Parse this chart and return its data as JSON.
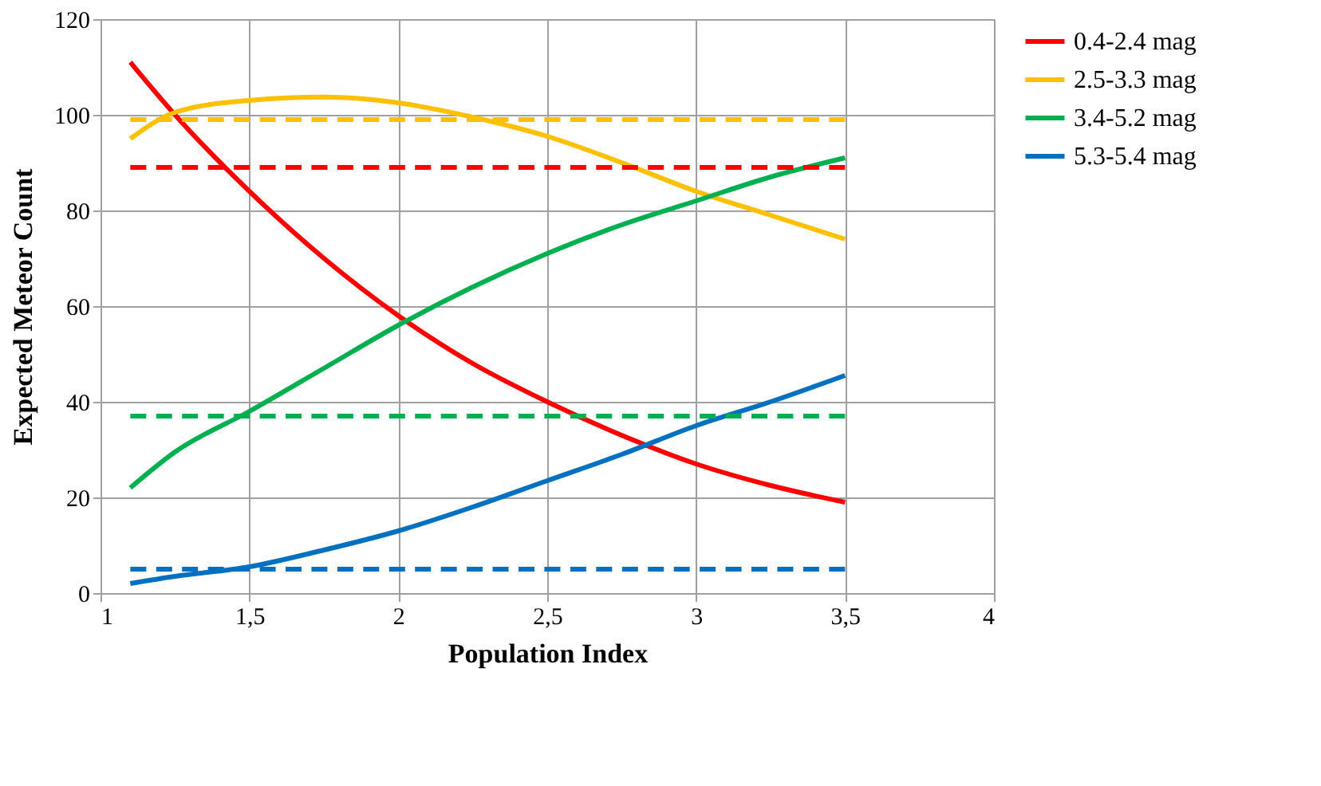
{
  "chart_data": {
    "type": "line",
    "xlabel": "Population Index",
    "ylabel": "Expected Meteor Count",
    "xlim": [
      1,
      4
    ],
    "xticks": [
      1,
      {
        "value": 1.5,
        "label": "1,5"
      },
      2,
      {
        "value": 2.5,
        "label": "2,5"
      },
      3,
      {
        "value": 3.5,
        "label": "3,5"
      },
      4
    ],
    "ylim": [
      0,
      120
    ],
    "yticks": [
      0,
      20,
      40,
      60,
      80,
      100,
      120
    ],
    "grid": true,
    "legend": "right",
    "marker": "none",
    "series": [
      {
        "name": "0.4-2.4 mag",
        "color": "#ff0000",
        "line_style": "solid",
        "x": [
          1.1,
          1.25,
          1.5,
          1.75,
          2,
          2.25,
          2.5,
          2.75,
          3,
          3.25,
          3.5
        ],
        "values": [
          111,
          100,
          84,
          70,
          58,
          48,
          40,
          33,
          27,
          22.5,
          19
        ]
      },
      {
        "name": "2.5-3.3 mag",
        "color": "#ffc000",
        "line_style": "solid",
        "x": [
          1.1,
          1.25,
          1.5,
          1.75,
          2,
          2.25,
          2.5,
          2.75,
          3,
          3.25,
          3.5
        ],
        "values": [
          95,
          100.5,
          103,
          103.7,
          102.5,
          99.5,
          95.5,
          90,
          84,
          79,
          74
        ]
      },
      {
        "name": "3.4-5.2 mag",
        "color": "#00b050",
        "line_style": "solid",
        "x": [
          1.1,
          1.25,
          1.5,
          1.75,
          2,
          2.25,
          2.5,
          2.75,
          3,
          3.25,
          3.5
        ],
        "values": [
          22,
          29.5,
          38,
          47,
          56,
          64,
          71,
          77,
          82,
          87,
          91
        ]
      },
      {
        "name": "5.3-5.4 mag",
        "color": "#0070c0",
        "line_style": "solid",
        "x": [
          1.1,
          1.25,
          1.5,
          1.75,
          2,
          2.25,
          2.5,
          2.75,
          3,
          3.25,
          3.5
        ],
        "values": [
          2,
          3.5,
          5.5,
          9,
          13,
          18,
          23.5,
          29,
          35,
          40,
          45.5
        ]
      },
      {
        "color": "#ff0000",
        "line_style": "dashed",
        "x": [
          1.1,
          3.5
        ],
        "values": [
          89,
          89
        ]
      },
      {
        "color": "#ffc000",
        "line_style": "dashed",
        "x": [
          1.1,
          3.5
        ],
        "values": [
          99,
          99
        ]
      },
      {
        "color": "#00b050",
        "line_style": "dashed",
        "x": [
          1.1,
          3.5
        ],
        "values": [
          37,
          37
        ]
      },
      {
        "color": "#0070c0",
        "line_style": "dashed",
        "x": [
          1.1,
          3.5
        ],
        "values": [
          5,
          5
        ]
      }
    ]
  }
}
